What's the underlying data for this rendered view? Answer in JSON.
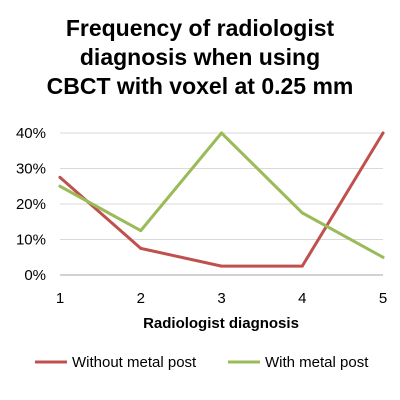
{
  "chart_data": {
    "type": "line",
    "title_lines": [
      "Frequency of radiologist",
      "diagnosis when using",
      "CBCT with voxel at 0.25 mm"
    ],
    "xlabel": "Radiologist diagnosis",
    "ylabel": "",
    "x": [
      1,
      2,
      3,
      4,
      5
    ],
    "x_tick_labels": [
      "1",
      "2",
      "3",
      "4",
      "5"
    ],
    "y_tick_labels": [
      "0%",
      "10%",
      "20%",
      "30%",
      "40%"
    ],
    "y_ticks": [
      0,
      10,
      20,
      30,
      40
    ],
    "ylim": [
      0,
      40
    ],
    "grid": true,
    "legend_position": "bottom",
    "series": [
      {
        "name": "Without metal post",
        "color": "#c0504d",
        "values": [
          27.5,
          7.5,
          2.5,
          2.5,
          40
        ]
      },
      {
        "name": "With metal post",
        "color": "#9bbb59",
        "values": [
          25,
          12.5,
          40,
          17.5,
          5
        ]
      }
    ]
  }
}
